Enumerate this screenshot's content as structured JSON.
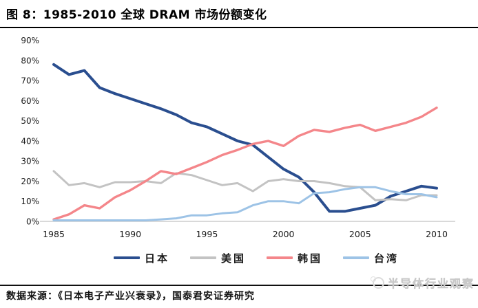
{
  "header": {
    "title": "图 8：1985-2010 全球 DRAM 市场份额变化"
  },
  "footer": {
    "source": "数据来源：《日本电子产业兴衰录》，国泰君安证券研究",
    "watermark": "半导体行业观察"
  },
  "chart_data": {
    "type": "line",
    "title": "",
    "xlabel": "",
    "ylabel": "",
    "grid": false,
    "legend_position": "bottom",
    "ylim": [
      0,
      90
    ],
    "y_ticks": [
      "0%",
      "10%",
      "20%",
      "30%",
      "40%",
      "50%",
      "60%",
      "70%",
      "80%",
      "90%"
    ],
    "y_tick_values": [
      0,
      10,
      20,
      30,
      40,
      50,
      60,
      70,
      80,
      90
    ],
    "x_ticks": [
      1985,
      1990,
      1995,
      2000,
      2005,
      2010
    ],
    "x": [
      1985,
      1986,
      1987,
      1988,
      1989,
      1990,
      1991,
      1992,
      1993,
      1994,
      1995,
      1996,
      1997,
      1998,
      1999,
      2000,
      2001,
      2002,
      2003,
      2004,
      2005,
      2006,
      2007,
      2008,
      2009,
      2010
    ],
    "axis_color": "#d9d9d9",
    "tick_label_color": "#1a1a1a",
    "series": [
      {
        "key": "japan",
        "name": "日本",
        "color": "#2a4e8f",
        "width": 4,
        "values": [
          78,
          73,
          75,
          66.5,
          63.5,
          61,
          58.5,
          56,
          53,
          49,
          47,
          43.5,
          40,
          38,
          32,
          26,
          22,
          14.5,
          5,
          5,
          6.5,
          8,
          12.5,
          15,
          17.5,
          16.5
        ]
      },
      {
        "key": "usa",
        "name": "美国",
        "color": "#c3c3c3",
        "width": 3,
        "values": [
          25,
          18,
          19,
          17,
          19.5,
          19.5,
          20,
          19,
          24,
          23,
          20.5,
          18,
          19,
          15,
          20,
          21,
          20,
          20,
          19,
          17.5,
          17,
          10.5,
          11,
          10.5,
          13,
          13
        ]
      },
      {
        "key": "korea",
        "name": "韩国",
        "color": "#f4868a",
        "width": 3.4,
        "values": [
          1,
          3.5,
          8,
          6.5,
          12,
          15.5,
          20,
          25,
          23.5,
          26.5,
          29.5,
          33,
          35.5,
          38.5,
          40,
          37.5,
          42.5,
          45.5,
          44.5,
          46.5,
          48,
          45,
          47,
          49,
          52,
          56.5
        ]
      },
      {
        "key": "taiwan",
        "name": "台湾",
        "color": "#9dc3e6",
        "width": 3,
        "values": [
          0.5,
          0.5,
          0.5,
          0.5,
          0.5,
          0.5,
          0.5,
          1,
          1.5,
          3,
          3,
          4,
          4.5,
          8,
          10,
          10,
          9,
          14,
          14.5,
          16,
          17,
          17,
          15,
          13.5,
          13.5,
          12
        ]
      }
    ]
  }
}
